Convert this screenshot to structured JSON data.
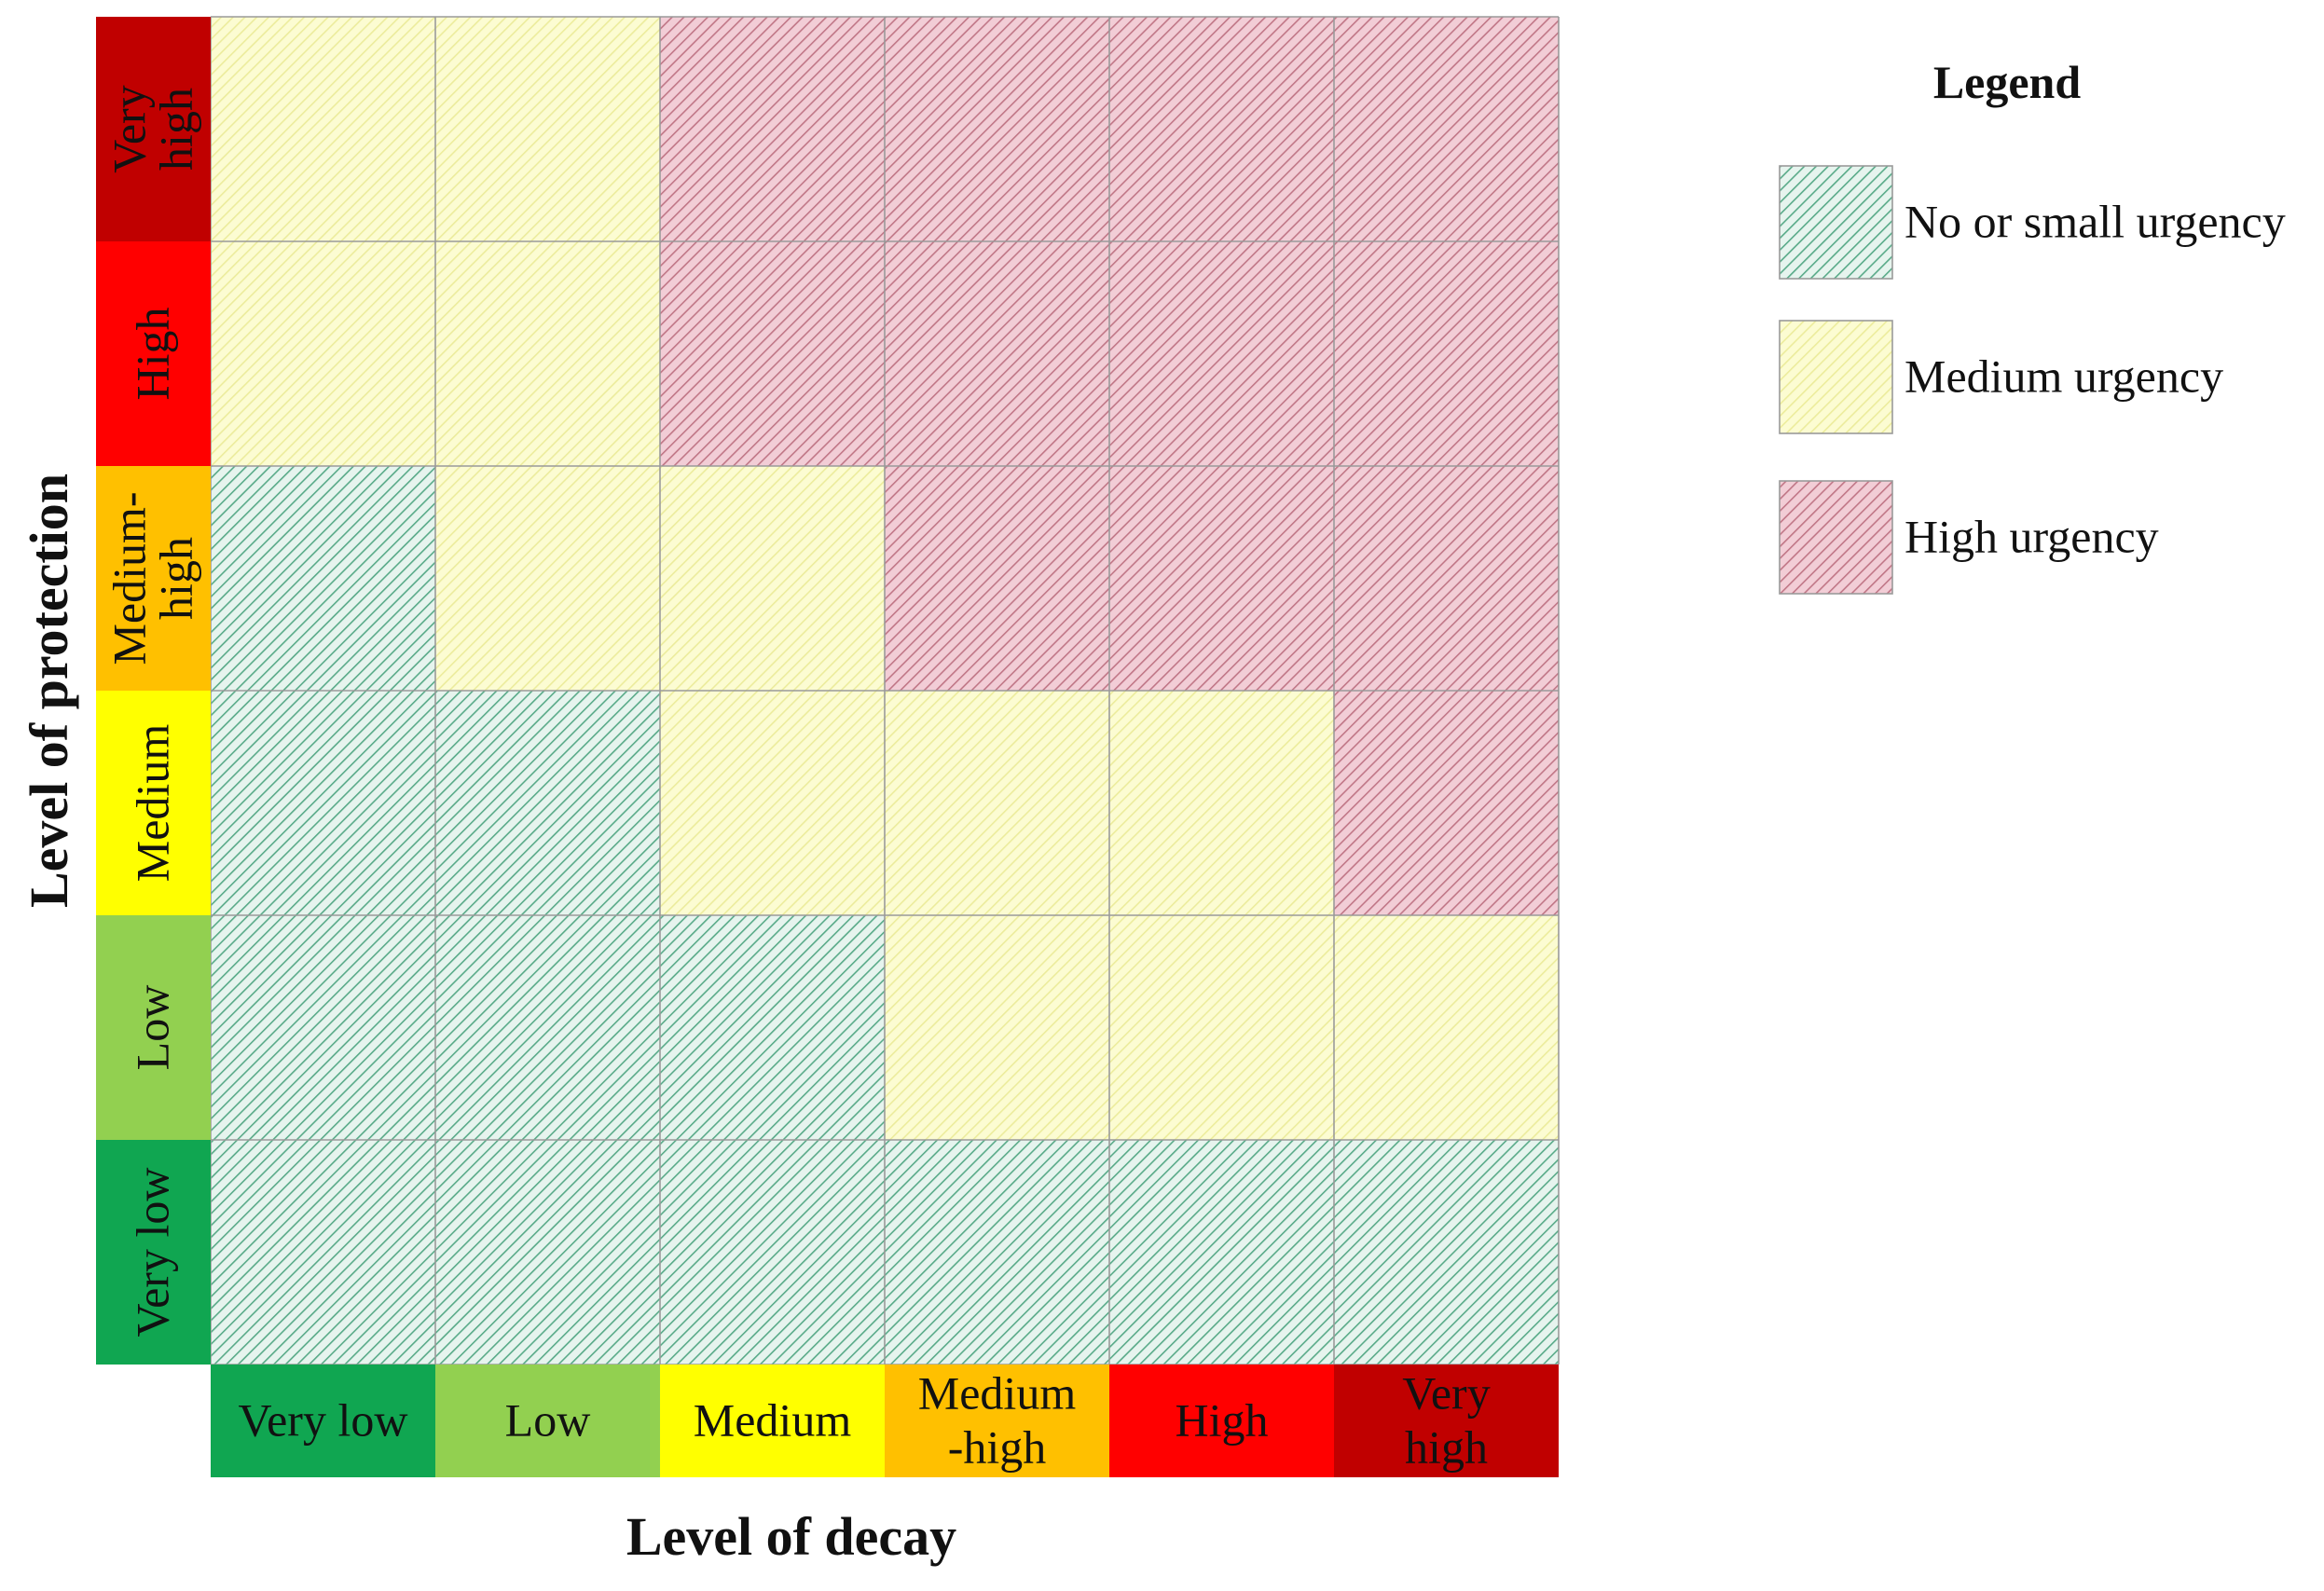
{
  "chart_data": {
    "type": "heatmap",
    "x_axis": {
      "title": "Level of decay",
      "categories": [
        {
          "label": [
            "Very low"
          ],
          "color": "#10a651"
        },
        {
          "label": [
            "Low"
          ],
          "color": "#92d050"
        },
        {
          "label": [
            "Medium"
          ],
          "color": "#ffff00"
        },
        {
          "label": [
            "Medium",
            "-high"
          ],
          "color": "#ffc000"
        },
        {
          "label": [
            "High"
          ],
          "color": "#ff0000"
        },
        {
          "label": [
            "Very",
            "high"
          ],
          "color": "#c00000"
        }
      ]
    },
    "y_axis": {
      "title": "Level of protection",
      "categories_top_to_bottom": [
        {
          "label": [
            "Very",
            "high"
          ],
          "color": "#c00000"
        },
        {
          "label": [
            "High"
          ],
          "color": "#ff0000"
        },
        {
          "label": [
            "Medium-",
            "high"
          ],
          "color": "#ffc000"
        },
        {
          "label": [
            "Medium"
          ],
          "color": "#ffff00"
        },
        {
          "label": [
            "Low"
          ],
          "color": "#92d050"
        },
        {
          "label": [
            "Very low"
          ],
          "color": "#10a651"
        }
      ]
    },
    "urgency_levels": {
      "no_small": {
        "label": "No or small urgency",
        "fill": "#e6f4ee",
        "stripe": "#58aa88"
      },
      "medium": {
        "label": "Medium urgency",
        "fill": "#fcfcd2",
        "stripe": "#ecec9c"
      },
      "high": {
        "label": "High urgency",
        "fill": "#f2cdd6",
        "stripe": "#c07686"
      }
    },
    "matrix_top_to_bottom": [
      [
        "medium",
        "medium",
        "high",
        "high",
        "high",
        "high"
      ],
      [
        "medium",
        "medium",
        "high",
        "high",
        "high",
        "high"
      ],
      [
        "no_small",
        "medium",
        "medium",
        "high",
        "high",
        "high"
      ],
      [
        "no_small",
        "no_small",
        "medium",
        "medium",
        "medium",
        "high"
      ],
      [
        "no_small",
        "no_small",
        "no_small",
        "medium",
        "medium",
        "medium"
      ],
      [
        "no_small",
        "no_small",
        "no_small",
        "no_small",
        "no_small",
        "no_small"
      ]
    ],
    "legend": {
      "title": "Legend",
      "position": "right",
      "order": [
        "no_small",
        "medium",
        "high"
      ]
    },
    "grid": true
  }
}
